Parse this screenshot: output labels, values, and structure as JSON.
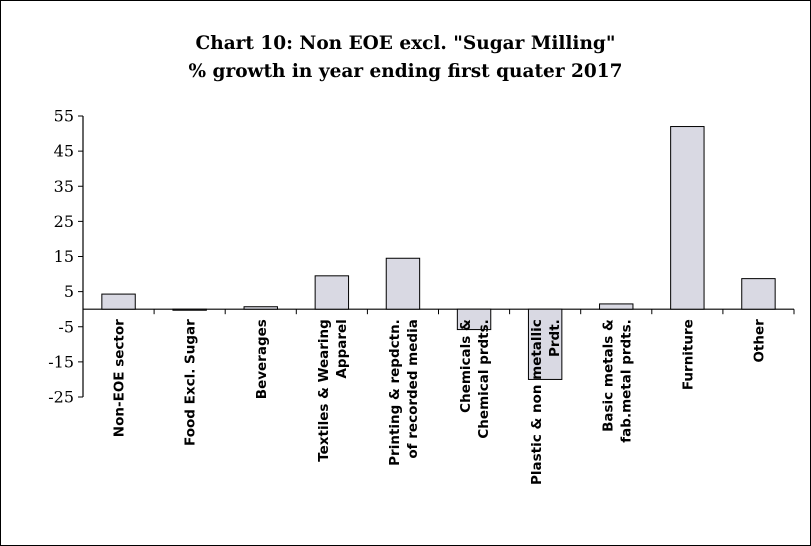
{
  "chart_data": {
    "type": "bar",
    "title": "Chart 10: Non EOE excl. \"Sugar Milling\"",
    "subtitle": "% growth in year ending first quater 2017",
    "xlabel": "",
    "ylabel": "",
    "ylim": [
      -25,
      55
    ],
    "yticks": [
      55,
      45,
      35,
      25,
      15,
      5,
      -5,
      -15,
      -25
    ],
    "grid": false,
    "legend": "none",
    "categories": [
      "Non-EOE sector",
      "Food Excl. Sugar",
      "Beverages",
      "Textiles & Wearing|Apparel",
      "Printing & repdctn.|of recorded media",
      "Chemicals &|Chemical prdts.",
      "Plastic & non metallic|Prdt.",
      "Basic metals &|fab.metal prdts.",
      "Furniture",
      "Other"
    ],
    "values": [
      4.3,
      -0.3,
      0.7,
      9.5,
      14.5,
      -5.8,
      -20.0,
      1.5,
      52.0,
      8.7
    ],
    "bar_fill": "#d9d9e3",
    "bar_stroke": "#000000"
  }
}
